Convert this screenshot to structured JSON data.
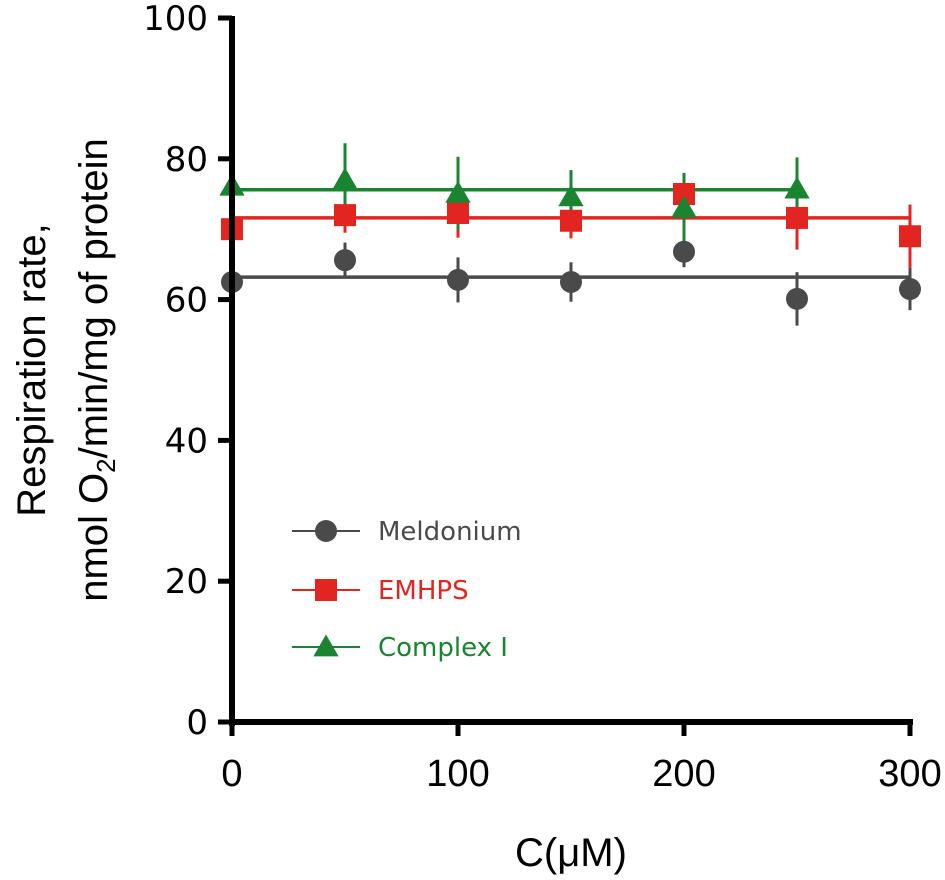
{
  "chart_data": {
    "type": "scatter",
    "title": "",
    "xlabel": "C(μM)",
    "ylabel_line1": "Respiration rate,",
    "ylabel_line2_pre": "nmol O",
    "ylabel_line2_sub": "2",
    "ylabel_line2_post": "/min/mg of protein",
    "xlim": [
      0,
      300
    ],
    "ylim": [
      0,
      100
    ],
    "xticks": [
      0,
      100,
      200,
      300
    ],
    "xtick_labels": [
      "0",
      "100",
      "200",
      "300"
    ],
    "yticks": [
      0,
      20,
      40,
      60,
      80,
      100
    ],
    "ytick_labels": [
      "0",
      "20",
      "40",
      "60",
      "80",
      "100"
    ],
    "grid": false,
    "legend_position": "lower-left",
    "series": [
      {
        "name": "Meldonium",
        "color": "#4a4a4a",
        "marker": "circle",
        "x": [
          0,
          50,
          100,
          150,
          200,
          250,
          300
        ],
        "y": [
          62.5,
          65.6,
          62.8,
          62.5,
          66.8,
          60.1,
          61.5
        ],
        "err": [
          3.5,
          2.5,
          3.2,
          2.8,
          2.2,
          3.8,
          3.0
        ],
        "fit": {
          "value": 63.2,
          "x_range": [
            0,
            300
          ]
        }
      },
      {
        "name": "EMHPS",
        "color": "#e32522",
        "marker": "square",
        "x": [
          0,
          50,
          100,
          150,
          200,
          250,
          300
        ],
        "y": [
          70.0,
          72.0,
          72.3,
          71.2,
          75.0,
          71.6,
          69.0
        ],
        "err": [
          3.8,
          2.5,
          3.5,
          2.5,
          2.8,
          4.5,
          4.5
        ],
        "fit": {
          "value": 71.6,
          "x_range": [
            0,
            300
          ]
        }
      },
      {
        "name": "Complex I",
        "color": "#1a8431",
        "marker": "triangle",
        "x": [
          0,
          50,
          100,
          150,
          200,
          250
        ],
        "y": [
          76.1,
          77.0,
          75.1,
          74.6,
          73.0,
          75.7
        ],
        "err": [
          4.5,
          5.2,
          5.2,
          3.8,
          5.0,
          4.5
        ],
        "fit": {
          "value": 75.6,
          "x_range": [
            0,
            250
          ]
        }
      }
    ]
  }
}
